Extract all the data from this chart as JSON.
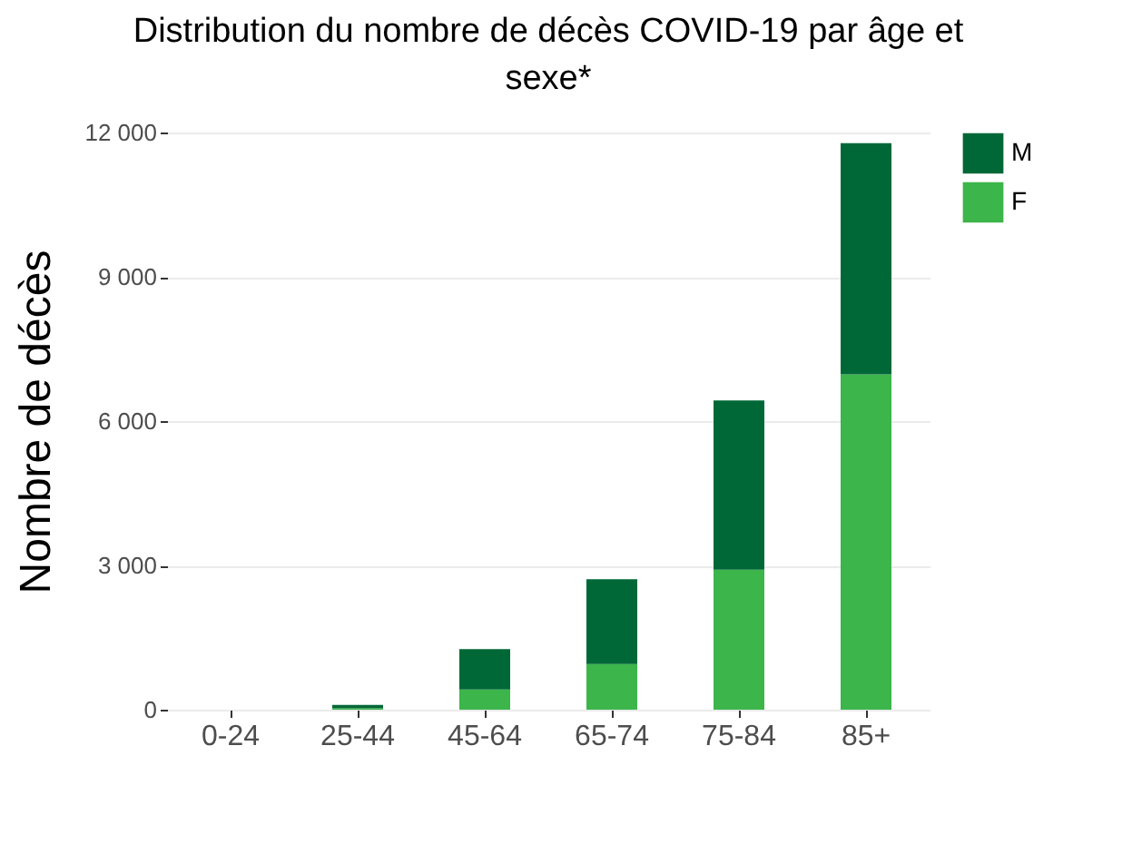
{
  "chart_data": {
    "type": "bar",
    "title": "Distribution du nombre de décès COVID-19 par âge et sexe*",
    "ylabel": "Nombre de décès",
    "categories": [
      "0-24",
      "25-44",
      "45-64",
      "65-74",
      "75-84",
      "85+"
    ],
    "series": [
      {
        "name": "F",
        "color": "#3cb54a",
        "values": [
          0,
          30,
          420,
          950,
          2910,
          6970
        ]
      },
      {
        "name": "M",
        "color": "#006837",
        "values": [
          0,
          70,
          840,
          1760,
          3520,
          4810
        ]
      }
    ],
    "stacked": true,
    "ylim": [
      0,
      12000
    ],
    "yticks": [
      {
        "value": 0,
        "label": "0"
      },
      {
        "value": 3000,
        "label": "3 000"
      },
      {
        "value": 6000,
        "label": "6 000"
      },
      {
        "value": 9000,
        "label": "9 000"
      },
      {
        "value": 12000,
        "label": "12 000"
      }
    ],
    "grid": "y",
    "legend": "right"
  }
}
